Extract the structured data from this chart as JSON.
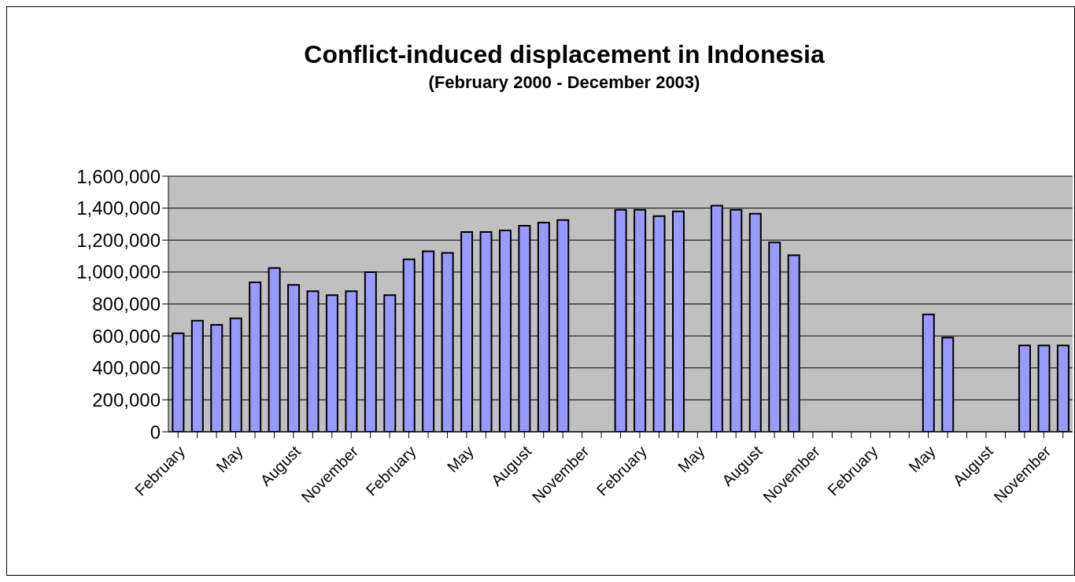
{
  "chart_data": {
    "type": "bar",
    "title": "Conflict-induced displacement in Indonesia",
    "subtitle": "(February 2000 - December 2003)",
    "categories": [
      "February",
      null,
      null,
      "May",
      null,
      null,
      "August",
      null,
      null,
      "November",
      null,
      null,
      "February",
      null,
      null,
      "May",
      null,
      null,
      "August",
      null,
      null,
      "November",
      null,
      null,
      "February",
      null,
      null,
      "May",
      null,
      null,
      "August",
      null,
      null,
      "November",
      null,
      null,
      "February",
      null,
      null,
      "May",
      null,
      null,
      "August",
      null,
      null,
      "November",
      null
    ],
    "series": [
      {
        "color": "#9999ff",
        "values": [
          617000,
          695000,
          670000,
          710000,
          935000,
          1025000,
          920000,
          880000,
          855000,
          880000,
          1000000,
          855000,
          1080000,
          1130000,
          1120000,
          1250000,
          1250000,
          1260000,
          1290000,
          1310000,
          1325000,
          null,
          null,
          1390000,
          1390000,
          1350000,
          1380000,
          null,
          1415000,
          1390000,
          1365000,
          1185000,
          1105000,
          null,
          null,
          null,
          null,
          null,
          null,
          735000,
          590000,
          null,
          null,
          null,
          540000,
          540000,
          540000
        ]
      }
    ],
    "ylim": [
      0,
      1600000
    ],
    "yticks": [
      0,
      {
        "value": 200000,
        "label": "200,000"
      },
      {
        "value": 400000,
        "label": "400,000"
      },
      {
        "value": 600000,
        "label": "600,000"
      },
      {
        "value": 800000,
        "label": "800,000"
      },
      {
        "value": 1000000,
        "label": "1,000,000"
      },
      {
        "value": 1200000,
        "label": "1,200,000"
      },
      {
        "value": 1400000,
        "label": "1,400,000"
      },
      {
        "value": 1600000,
        "label": "1,600,000"
      }
    ],
    "grid": "y"
  }
}
